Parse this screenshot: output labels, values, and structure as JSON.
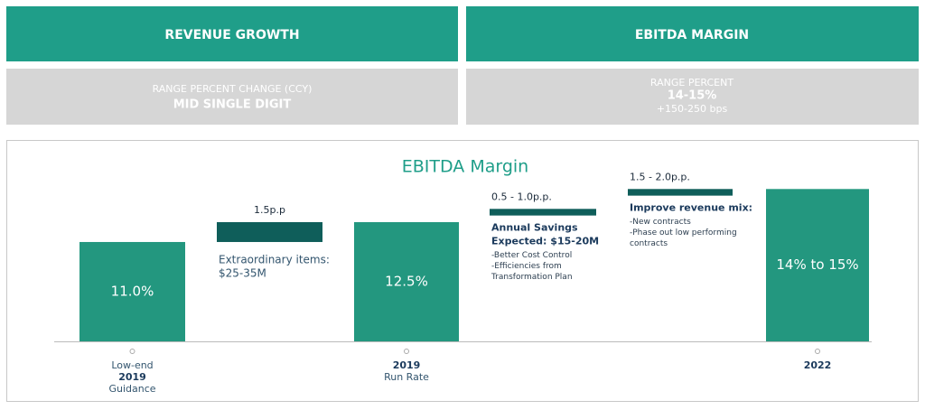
{
  "panels": [
    {
      "title": "REVENUE GROWTH",
      "lines": [
        "RANGE PERCENT CHANGE (CCY)",
        "MID SINGLE DIGIT"
      ]
    },
    {
      "title": "EBITDA MARGIN",
      "lines": [
        "RANGE PERCENT",
        "14-15%",
        "+150-250 bps"
      ]
    }
  ],
  "chart_data": {
    "type": "waterfall",
    "title": "EBITDA Margin",
    "categories": [
      [
        "Low-end",
        "2019",
        "Guidance"
      ],
      null,
      [
        "2019",
        "Run Rate"
      ],
      null,
      null,
      [
        "2022"
      ]
    ],
    "values": [
      11.0,
      1.5,
      12.5,
      [
        0.5,
        1.0
      ],
      [
        1.5,
        2.0
      ],
      [
        14,
        15
      ]
    ],
    "value_labels": [
      "11.0%",
      "1.5p.p",
      "12.5%",
      "0.5 - 1.0p.p.",
      "1.5 - 2.0p.p.",
      "14% to 15%"
    ],
    "notes": [
      null,
      {
        "heading": [
          "Extraordinary items:"
        ],
        "lines": [
          "$25-35M"
        ]
      },
      null,
      {
        "heading": [
          "Annual Savings",
          "Expected: $15-20M"
        ],
        "lines": [
          "-Better Cost Control",
          "-Efficiencies from",
          "Transformation Plan"
        ]
      },
      {
        "heading": [
          "Improve revenue mix:"
        ],
        "lines": [
          "-New contracts",
          "-Phase out low performing",
          "contracts"
        ]
      },
      null
    ],
    "total_color": "#23977f",
    "step_color": "#0f5e5a"
  }
}
